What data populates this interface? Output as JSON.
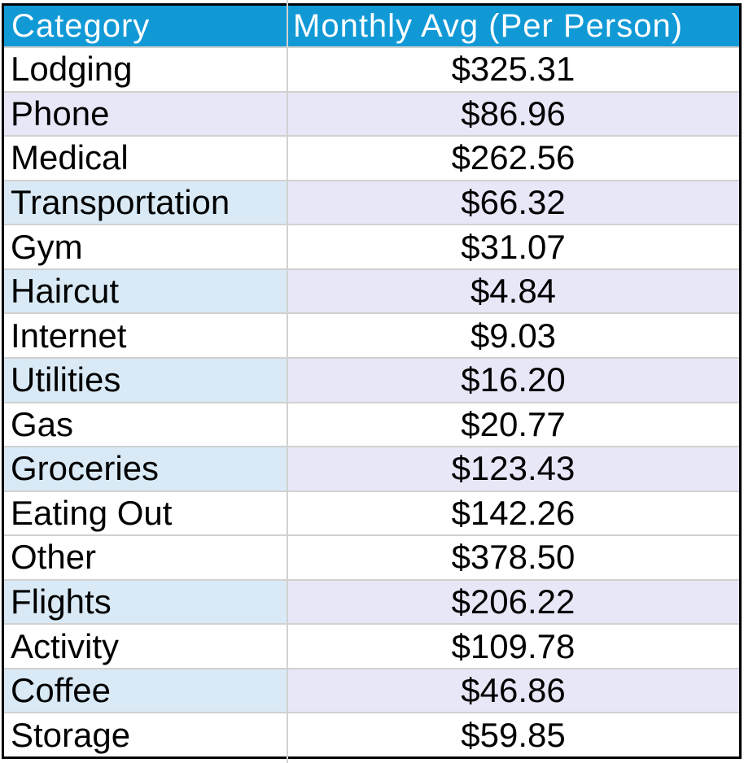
{
  "table": {
    "header": {
      "category": "Category",
      "value": "Monthly Avg (Per Person)"
    },
    "rows": [
      {
        "category": "Lodging",
        "value": "$325.31",
        "cat_bg": "white",
        "val_bg": "white"
      },
      {
        "category": "Phone",
        "value": "$86.96",
        "cat_bg": "lavender",
        "val_bg": "lavender"
      },
      {
        "category": "Medical",
        "value": "$262.56",
        "cat_bg": "white",
        "val_bg": "white"
      },
      {
        "category": "Transportation",
        "value": "$66.32",
        "cat_bg": "blue",
        "val_bg": "lavender"
      },
      {
        "category": "Gym",
        "value": "$31.07",
        "cat_bg": "white",
        "val_bg": "white"
      },
      {
        "category": "Haircut",
        "value": "$4.84",
        "cat_bg": "blue",
        "val_bg": "lavender"
      },
      {
        "category": "Internet",
        "value": "$9.03",
        "cat_bg": "white",
        "val_bg": "white"
      },
      {
        "category": "Utilities",
        "value": "$16.20",
        "cat_bg": "blue",
        "val_bg": "lavender"
      },
      {
        "category": "Gas",
        "value": "$20.77",
        "cat_bg": "white",
        "val_bg": "white"
      },
      {
        "category": "Groceries",
        "value": "$123.43",
        "cat_bg": "blue",
        "val_bg": "lavender"
      },
      {
        "category": "Eating Out",
        "value": "$142.26",
        "cat_bg": "white",
        "val_bg": "white"
      },
      {
        "category": "Other",
        "value": "$378.50",
        "cat_bg": "white",
        "val_bg": "white"
      },
      {
        "category": "Flights",
        "value": "$206.22",
        "cat_bg": "blue",
        "val_bg": "lavender"
      },
      {
        "category": "Activity",
        "value": "$109.78",
        "cat_bg": "white",
        "val_bg": "white"
      },
      {
        "category": "Coffee",
        "value": "$46.86",
        "cat_bg": "blue",
        "val_bg": "lavender"
      },
      {
        "category": "Storage",
        "value": "$59.85",
        "cat_bg": "white",
        "val_bg": "white"
      }
    ],
    "colors": {
      "header_bg": "#1199d6",
      "header_text": "#ffffff",
      "stripe_lavender": "#e8e7f8",
      "stripe_blue": "#d9eaf6",
      "gridline": "#d1d1d1",
      "frame": "#000000",
      "text": "#000000"
    }
  },
  "chart_data": {
    "type": "table",
    "title": "",
    "columns": [
      "Category",
      "Monthly Avg (Per Person)"
    ],
    "categories": [
      "Lodging",
      "Phone",
      "Medical",
      "Transportation",
      "Gym",
      "Haircut",
      "Internet",
      "Utilities",
      "Gas",
      "Groceries",
      "Eating Out",
      "Other",
      "Flights",
      "Activity",
      "Coffee",
      "Storage"
    ],
    "values": [
      325.31,
      86.96,
      262.56,
      66.32,
      31.07,
      4.84,
      9.03,
      16.2,
      20.77,
      123.43,
      142.26,
      378.5,
      206.22,
      109.78,
      46.86,
      59.85
    ],
    "value_format": "USD",
    "layout": {
      "header_fill": "#1199d6",
      "shaded_rows": [
        "Phone",
        "Transportation",
        "Haircut",
        "Utilities",
        "Groceries",
        "Flights",
        "Coffee"
      ],
      "value_alignment": "center",
      "category_alignment": "left"
    }
  }
}
